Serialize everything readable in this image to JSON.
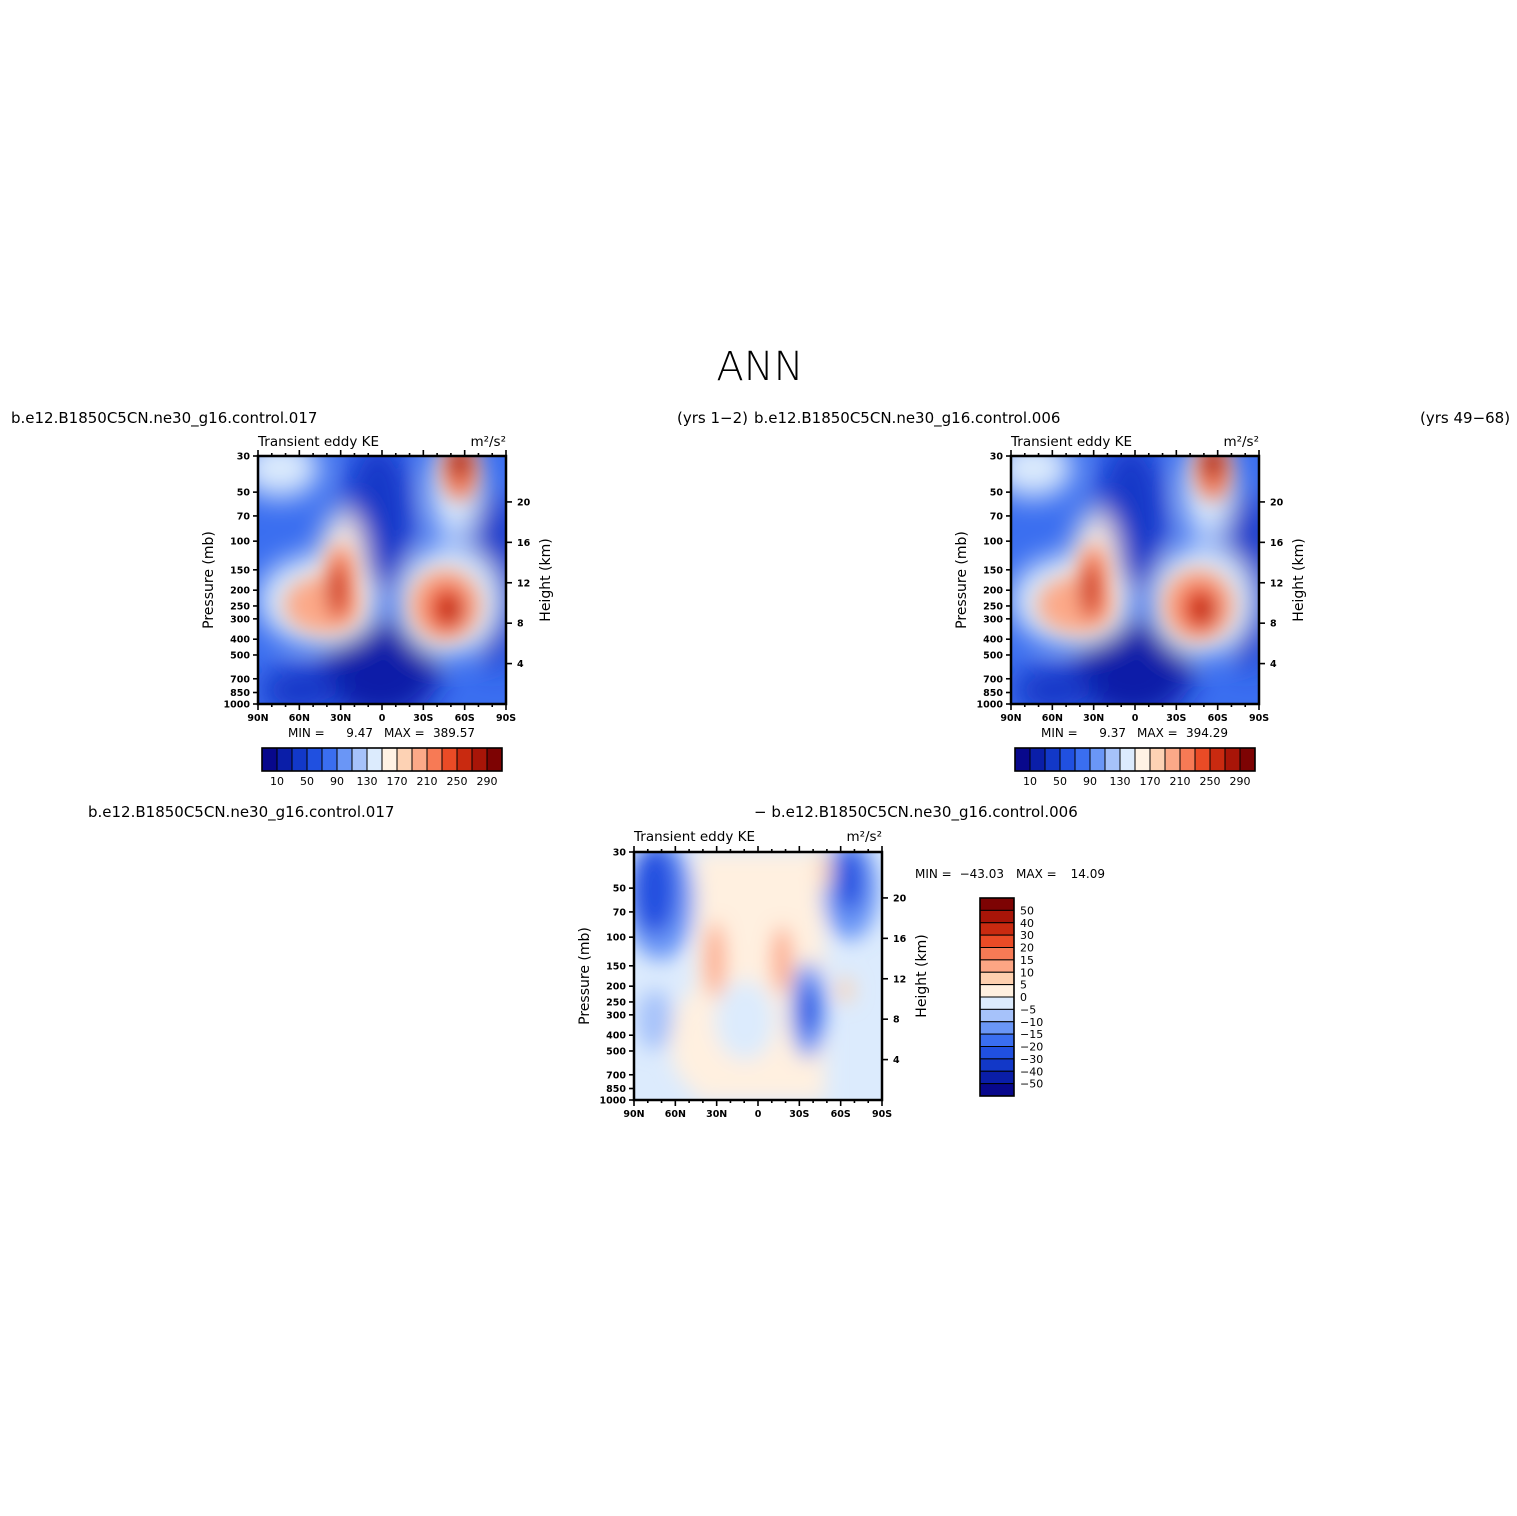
{
  "figure": {
    "title": "ANN"
  },
  "colors": {
    "ke_palette": [
      "#08088c",
      "#0a1ea8",
      "#1238c8",
      "#2050e0",
      "#3a6ef0",
      "#6a96f6",
      "#a6c2fa",
      "#dcebfd",
      "#fff2e4",
      "#fdd2b4",
      "#fca988",
      "#f77a55",
      "#ea4b26",
      "#c92a10",
      "#a81508",
      "#7d0303"
    ],
    "diff_palette": [
      "#08088c",
      "#0a1ea8",
      "#1238c8",
      "#2050e0",
      "#3a6ef0",
      "#6a96f6",
      "#a6c2fa",
      "#dcebfd",
      "#fff0e0",
      "#fdcfae",
      "#fca584",
      "#f77a55",
      "#ea4b26",
      "#c92a10",
      "#a81508",
      "#7d0303"
    ]
  },
  "chart_data": [
    {
      "type": "heatmap",
      "panel": "top-left",
      "case_label": "b.e12.B1850C5CN.ne30_g16.control.017",
      "years_label": "(yrs  1−2)",
      "left_string": "Transient  eddy  KE",
      "right_string": "m²/s²",
      "ylabel": "Pressure  (mb)",
      "ylabel_right": "Height  (km)",
      "x_ticks": [
        "90N",
        "60N",
        "30N",
        "0",
        "30S",
        "60S",
        "90S"
      ],
      "x_values": [
        90,
        60,
        30,
        0,
        -30,
        -60,
        -90
      ],
      "y_ticks": [
        "30",
        "50",
        "70",
        "100",
        "150",
        "200",
        "250",
        "300",
        "400",
        "500",
        "700",
        "850",
        "1000"
      ],
      "y_values": [
        30,
        50,
        70,
        100,
        150,
        200,
        250,
        300,
        400,
        500,
        700,
        850,
        1000
      ],
      "y_scale": "log",
      "height_ticks": [
        "4",
        "8",
        "12",
        "16",
        "20"
      ],
      "min_label": "MIN =",
      "min_value": "9.47",
      "max_label": "MAX =",
      "max_value": "389.57",
      "colorbar_labels": [
        "10",
        "50",
        "90",
        "130",
        "170",
        "210",
        "250",
        "290"
      ],
      "colorbar_orientation": "horizontal",
      "features": [
        {
          "lat": 28,
          "p": 210,
          "value": 380
        },
        {
          "lat": -48,
          "p": 280,
          "value": 389.57
        },
        {
          "lat": -57,
          "p": 32,
          "value": 330
        },
        {
          "lat": 0,
          "p": 40,
          "value": 9.47
        }
      ]
    },
    {
      "type": "heatmap",
      "panel": "top-right",
      "case_label": "b.e12.B1850C5CN.ne30_g16.control.006",
      "years_label": "(yrs  49−68)",
      "left_string": "Transient  eddy  KE",
      "right_string": "m²/s²",
      "ylabel": "Pressure  (mb)",
      "ylabel_right": "Height  (km)",
      "x_ticks": [
        "90N",
        "60N",
        "30N",
        "0",
        "30S",
        "60S",
        "90S"
      ],
      "x_values": [
        90,
        60,
        30,
        0,
        -30,
        -60,
        -90
      ],
      "y_ticks": [
        "30",
        "50",
        "70",
        "100",
        "150",
        "200",
        "250",
        "300",
        "400",
        "500",
        "700",
        "850",
        "1000"
      ],
      "y_values": [
        30,
        50,
        70,
        100,
        150,
        200,
        250,
        300,
        400,
        500,
        700,
        850,
        1000
      ],
      "y_scale": "log",
      "height_ticks": [
        "4",
        "8",
        "12",
        "16",
        "20"
      ],
      "min_label": "MIN =",
      "min_value": "9.37",
      "max_label": "MAX =",
      "max_value": "394.29",
      "colorbar_labels": [
        "10",
        "50",
        "90",
        "130",
        "170",
        "210",
        "250",
        "290"
      ],
      "colorbar_orientation": "horizontal",
      "features": [
        {
          "lat": 28,
          "p": 210,
          "value": 385
        },
        {
          "lat": -48,
          "p": 280,
          "value": 394.29
        },
        {
          "lat": -57,
          "p": 32,
          "value": 335
        },
        {
          "lat": 0,
          "p": 40,
          "value": 9.37
        }
      ]
    },
    {
      "type": "heatmap",
      "panel": "bottom-difference",
      "case_label_left": "b.e12.B1850C5CN.ne30_g16.control.017",
      "case_label_right": "−  b.e12.B1850C5CN.ne30_g16.control.006",
      "left_string": "Transient  eddy  KE",
      "right_string": "m²/s²",
      "ylabel": "Pressure  (mb)",
      "ylabel_right": "Height  (km)",
      "x_ticks": [
        "90N",
        "60N",
        "30N",
        "0",
        "30S",
        "60S",
        "90S"
      ],
      "x_values": [
        90,
        60,
        30,
        0,
        -30,
        -60,
        -90
      ],
      "y_ticks": [
        "30",
        "50",
        "70",
        "100",
        "150",
        "200",
        "250",
        "300",
        "400",
        "500",
        "700",
        "850",
        "1000"
      ],
      "y_values": [
        30,
        50,
        70,
        100,
        150,
        200,
        250,
        300,
        400,
        500,
        700,
        850,
        1000
      ],
      "y_scale": "log",
      "height_ticks": [
        "4",
        "8",
        "12",
        "16",
        "20"
      ],
      "min_label": "MIN =",
      "min_value": "−43.03",
      "max_label": "MAX =",
      "max_value": "14.09",
      "colorbar_labels": [
        "50",
        "40",
        "30",
        "20",
        "15",
        "10",
        "5",
        "0",
        "−5",
        "−10",
        "−15",
        "−20",
        "−30",
        "−40",
        "−50"
      ],
      "colorbar_orientation": "vertical",
      "features": [
        {
          "lat": 83,
          "p": 45,
          "value": -30
        },
        {
          "lat": -68,
          "p": 40,
          "value": -40
        },
        {
          "lat": -36,
          "p": 290,
          "value": -43.03
        },
        {
          "lat": 38,
          "p": 150,
          "value": 12
        },
        {
          "lat": -17,
          "p": 150,
          "value": 14.09
        }
      ]
    }
  ]
}
